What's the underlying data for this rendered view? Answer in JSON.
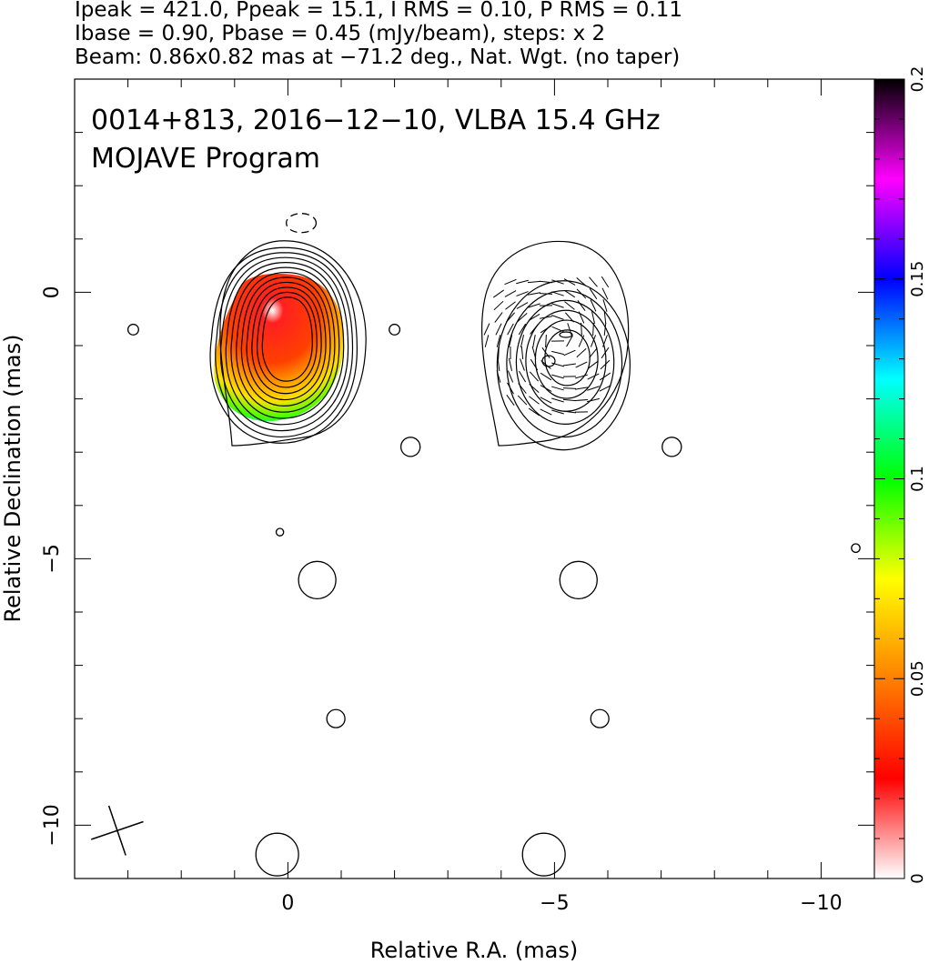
{
  "header": {
    "line1": "Ipeak = 421.0, Ppeak = 15.1, I RMS = 0.10, P RMS = 0.11",
    "line2": "Ibase = 0.90, Pbase = 0.45 (mJy/beam), steps: x 2",
    "line3": "Beam: 0.86x0.82 mas at −71.2 deg., Nat. Wgt. (no taper)"
  },
  "plot": {
    "title_line1": "0014+813, 2016−12−10, VLBA 15.4 GHz",
    "title_line2": "MOJAVE Program"
  },
  "chart_data": {
    "type": "heatmap",
    "xlabel": "Relative R.A. (mas)",
    "ylabel": "Relative Declination (mas)",
    "xlim": [
      4,
      -11
    ],
    "ylim": [
      -11,
      4
    ],
    "x_ticks": [
      0,
      -5,
      -10
    ],
    "x_tick_labels": [
      "0",
      "−5",
      "−10"
    ],
    "y_ticks": [
      0,
      -5,
      -10
    ],
    "y_tick_labels": [
      "0",
      "−5",
      "−10"
    ],
    "colorbar": {
      "range": [
        0,
        0.2
      ],
      "ticks": [
        0,
        0.05,
        0.1,
        0.15,
        0.2
      ],
      "tick_labels": [
        "0",
        "0.05",
        "0.1",
        "0.15",
        "0.2"
      ],
      "colors": [
        "#ffffff",
        "#ff0000",
        "#ff8000",
        "#ffff00",
        "#00ff00",
        "#00ffff",
        "#0000ff",
        "#ff00ff",
        "#000000"
      ]
    },
    "left_panel": {
      "center": [
        0,
        -0.8
      ],
      "n_contours": 11,
      "color_peak": [
        0,
        -0.8
      ]
    },
    "right_panel": {
      "center": [
        -5,
        -1.2
      ],
      "n_contours": 6
    },
    "isolated_contours": [
      {
        "x": 2.9,
        "y": -0.7,
        "r": 0.1
      },
      {
        "x": -2.0,
        "y": -0.7,
        "r": 0.1
      },
      {
        "x": -2.3,
        "y": -2.9,
        "r": 0.18
      },
      {
        "x": -7.2,
        "y": -2.9,
        "r": 0.18
      },
      {
        "x": 0.15,
        "y": -4.5,
        "r": 0.07
      },
      {
        "x": -0.55,
        "y": -5.4,
        "r": 0.35
      },
      {
        "x": -5.45,
        "y": -5.4,
        "r": 0.35
      },
      {
        "x": -0.9,
        "y": -8.0,
        "r": 0.17
      },
      {
        "x": -5.85,
        "y": -8.0,
        "r": 0.17
      },
      {
        "x": -10.65,
        "y": -4.8,
        "r": 0.08
      },
      {
        "x": 0.2,
        "y": -10.55,
        "r": 0.4
      },
      {
        "x": -4.8,
        "y": -10.55,
        "r": 0.4
      }
    ],
    "negative_contour": {
      "x": -0.25,
      "y": 1.3,
      "rx": 0.28,
      "ry": 0.18
    },
    "beam": {
      "major": 0.86,
      "minor": 0.82,
      "pa_deg": -71.2,
      "center": [
        3.2,
        -10.1
      ]
    }
  }
}
